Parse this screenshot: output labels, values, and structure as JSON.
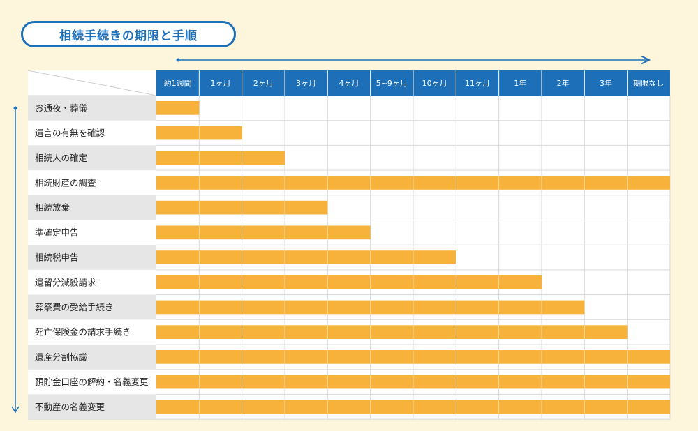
{
  "title": "相続手続きの期限と手順",
  "colors": {
    "background": "#fdf6dc",
    "header_bg": "#1d6fb8",
    "bar": "#f7b23b",
    "label_bg_odd": "#e6e6e6",
    "label_bg_even": "#ffffff",
    "accent": "#1d6fb8"
  },
  "chart_data": {
    "type": "bar",
    "orientation": "horizontal-gantt",
    "title": "相続手続きの期限と手順",
    "columns": [
      "約1週間",
      "1ヶ月",
      "2ヶ月",
      "3ヶ月",
      "4ヶ月",
      "5~9ヶ月",
      "10ヶ月",
      "11ヶ月",
      "1年",
      "2年",
      "3年",
      "期限なし"
    ],
    "tasks": [
      {
        "name": "お通夜・葬儀",
        "end_column": 1
      },
      {
        "name": "遺言の有無を確認",
        "end_column": 2
      },
      {
        "name": "相続人の確定",
        "end_column": 3
      },
      {
        "name": "相続財産の調査",
        "end_column": 12
      },
      {
        "name": "相続放棄",
        "end_column": 4
      },
      {
        "name": "準確定申告",
        "end_column": 5
      },
      {
        "name": "相続税申告",
        "end_column": 7
      },
      {
        "name": "遺留分減殺請求",
        "end_column": 9
      },
      {
        "name": "葬祭費の受給手続き",
        "end_column": 10
      },
      {
        "name": "死亡保険金の請求手続き",
        "end_column": 11
      },
      {
        "name": "遺産分割協議",
        "end_column": 12
      },
      {
        "name": "預貯金口座の解約・名義変更",
        "end_column": 12
      },
      {
        "name": "不動産の名義変更",
        "end_column": 12
      }
    ],
    "time_axis": "horizontal-arrow",
    "order_axis": "vertical-arrow",
    "grid": true
  }
}
